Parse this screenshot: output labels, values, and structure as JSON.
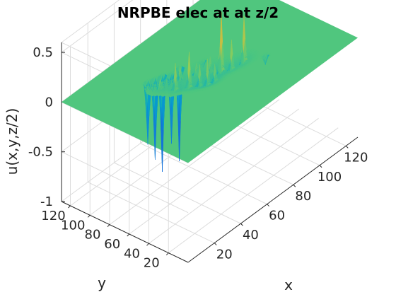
{
  "chart_data": {
    "type": "surface",
    "title": "NRPBE elec at at z/2",
    "xlabel": "x",
    "ylabel": "y",
    "zlabel": "u(x,y,z/2)",
    "xlim": [
      0,
      129
    ],
    "ylim": [
      0,
      129
    ],
    "zlim": [
      -1,
      0.6
    ],
    "x_ticks": [
      20,
      40,
      60,
      80,
      100,
      120
    ],
    "y_ticks": [
      20,
      40,
      60,
      80,
      100,
      120
    ],
    "z_ticks": [
      -1,
      -0.5,
      0,
      0.5
    ],
    "x_tick_labels": [
      "20",
      "40",
      "60",
      "80",
      "100",
      "120"
    ],
    "y_tick_labels": [
      "20",
      "40",
      "60",
      "80",
      "100",
      "120"
    ],
    "z_tick_labels": [
      "-1",
      "-0.5",
      "0",
      "0.5"
    ],
    "grid": true,
    "colormap": "parula",
    "baseline": 0,
    "features": [
      {
        "x": 44,
        "y": 72,
        "z": 0.27
      },
      {
        "x": 50,
        "y": 66,
        "z": 0.36
      },
      {
        "x": 55,
        "y": 62,
        "z": 0.22
      },
      {
        "x": 58,
        "y": 58,
        "z": 0.27
      },
      {
        "x": 62,
        "y": 56,
        "z": 0.18
      },
      {
        "x": 70,
        "y": 60,
        "z": 0.6
      },
      {
        "x": 74,
        "y": 55,
        "z": 0.3
      },
      {
        "x": 82,
        "y": 53,
        "z": 0.46
      },
      {
        "x": 66,
        "y": 66,
        "z": 0.16
      },
      {
        "x": 60,
        "y": 72,
        "z": 0.12
      },
      {
        "x": 52,
        "y": 78,
        "z": 0.14
      },
      {
        "x": 40,
        "y": 82,
        "z": 0.1
      },
      {
        "x": 38,
        "y": 92,
        "z": -0.62
      },
      {
        "x": 42,
        "y": 90,
        "z": -0.8
      },
      {
        "x": 46,
        "y": 88,
        "z": -0.95
      },
      {
        "x": 50,
        "y": 84,
        "z": -0.68
      },
      {
        "x": 56,
        "y": 84,
        "z": -0.92
      },
      {
        "x": 90,
        "y": 42,
        "z": -0.09
      },
      {
        "x": 68,
        "y": 76,
        "z": -0.06
      }
    ]
  }
}
